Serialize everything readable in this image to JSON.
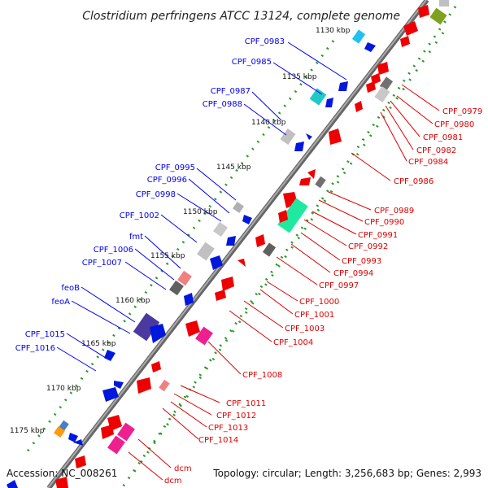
{
  "title": "Clostridium perfringens ATCC 13124, complete genome",
  "accession": "Accession: NC_008261",
  "topology": "Topology: circular; Length: 3,256,683 bp; Genes: 2,993",
  "colors": {
    "backbone": "#888888",
    "tick_dots": "#2a9a2a",
    "label_left": "#0000ee",
    "label_right": "#dd0000",
    "forward_gene": "#0018dd",
    "reverse_gene": "#ee0000"
  },
  "kbp_ticks": [
    "1130 kbp",
    "1135 kbp",
    "1140 kbp",
    "1145 kbp",
    "1150 kbp",
    "1155 kbp",
    "1160 kbp",
    "1165 kbp",
    "1170 kbp",
    "1175 kbp"
  ],
  "left_labels": [
    "CPF_0983",
    "CPF_0985",
    "CPF_0987",
    "CPF_0988",
    "CPF_0995",
    "CPF_0996",
    "CPF_0998",
    "CPF_1002",
    "fmt",
    "CPF_1006",
    "CPF_1007",
    "feoB",
    "feoA",
    "CPF_1015",
    "CPF_1016"
  ],
  "right_labels": [
    "CPF_0979",
    "CPF_0980",
    "CPF_0981",
    "CPF_0982",
    "CPF_0984",
    "CPF_0986",
    "CPF_0989",
    "CPF_0990",
    "CPF_0991",
    "CPF_0992",
    "CPF_0993",
    "CPF_0994",
    "CPF_0997",
    "CPF_1000",
    "CPF_1001",
    "CPF_1003",
    "CPF_1004",
    "CPF_1008",
    "CPF_1011",
    "CPF_1012",
    "CPF_1013",
    "CPF_1014",
    "dcm",
    "dcm"
  ]
}
